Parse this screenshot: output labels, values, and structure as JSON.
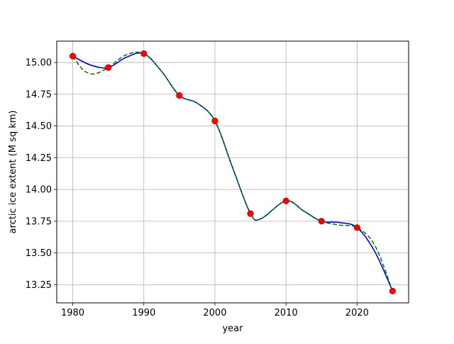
{
  "chart_data": {
    "type": "line",
    "title": "",
    "xlabel": "year",
    "ylabel": "arctic ice extent (M sq km)",
    "xlim": [
      1977.75,
      2027.25
    ],
    "ylim": [
      13.107,
      15.168
    ],
    "grid": true,
    "xticks": [
      1980,
      1990,
      2000,
      2010,
      2020
    ],
    "xtick_labels": [
      "1980",
      "1990",
      "2000",
      "2010",
      "2020"
    ],
    "yticks": [
      13.25,
      13.5,
      13.75,
      14.0,
      14.25,
      14.5,
      14.75,
      15.0
    ],
    "ytick_labels": [
      "13.25",
      "13.50",
      "13.75",
      "14.00",
      "14.25",
      "14.50",
      "14.75",
      "15.00"
    ],
    "points": {
      "x": [
        1980,
        1985,
        1990,
        1995,
        2000,
        2005,
        2010,
        2015,
        2020,
        2025
      ],
      "y": [
        15.05,
        14.96,
        15.07,
        14.74,
        14.54,
        13.81,
        13.91,
        13.75,
        13.7,
        13.2
      ],
      "color": "#ff0000",
      "edgecolor": "#c00000"
    },
    "series": [
      {
        "style": "solid",
        "color": "#0000ff",
        "x": [
          1980,
          1982.5,
          1985,
          1987.5,
          1990,
          1992.5,
          1995,
          1997.5,
          2000,
          2002.5,
          2005,
          2006.5,
          2010,
          2012.5,
          2015,
          2017.5,
          2020,
          2022.5,
          2025
        ],
        "y": [
          15.05,
          14.98,
          14.96,
          15.04,
          15.07,
          14.93,
          14.74,
          14.68,
          14.54,
          14.17,
          13.81,
          13.77,
          13.91,
          13.83,
          13.75,
          13.74,
          13.7,
          13.51,
          13.2
        ]
      },
      {
        "style": "dashed",
        "color": "#008000",
        "x": [
          1980,
          1981.5,
          1983,
          1985,
          1987.5,
          1990,
          1992.5,
          1995,
          1997.5,
          2000,
          2002.5,
          2005,
          2006.5,
          2010,
          2012.5,
          2015,
          2017.5,
          2020,
          2022.5,
          2025
        ],
        "y": [
          15.05,
          14.94,
          14.91,
          14.96,
          15.06,
          15.07,
          14.93,
          14.74,
          14.68,
          14.54,
          14.17,
          13.81,
          13.77,
          13.91,
          13.83,
          13.75,
          13.72,
          13.7,
          13.56,
          13.2
        ]
      }
    ]
  }
}
